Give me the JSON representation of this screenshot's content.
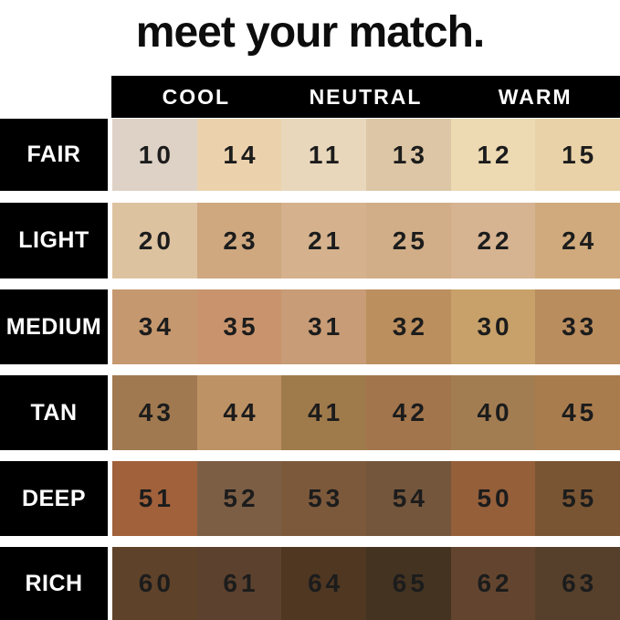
{
  "title": "meet your match.",
  "colors": {
    "background": "#ffffff",
    "header_bg": "#000000",
    "header_text": "#ffffff",
    "label_bg": "#000000",
    "label_text": "#ffffff",
    "number_text": "#1c1c1c"
  },
  "chart_data": {
    "type": "table",
    "title": "meet your match.",
    "column_groups": [
      "COOL",
      "NEUTRAL",
      "WARM"
    ],
    "row_labels": [
      "FAIR",
      "LIGHT",
      "MEDIUM",
      "TAN",
      "DEEP",
      "RICH"
    ],
    "rows": [
      {
        "label": "FAIR",
        "shades": [
          {
            "number": "10",
            "hex": "#ded2c6"
          },
          {
            "number": "14",
            "hex": "#ecd2ac"
          },
          {
            "number": "11",
            "hex": "#e8d7bb"
          },
          {
            "number": "13",
            "hex": "#ddc6a5"
          },
          {
            "number": "12",
            "hex": "#edd9b2"
          },
          {
            "number": "15",
            "hex": "#e9d2a7"
          }
        ]
      },
      {
        "label": "LIGHT",
        "shades": [
          {
            "number": "20",
            "hex": "#ddc2a0"
          },
          {
            "number": "23",
            "hex": "#cfa880"
          },
          {
            "number": "21",
            "hex": "#d5b28d"
          },
          {
            "number": "25",
            "hex": "#d1ae88"
          },
          {
            "number": "22",
            "hex": "#d6b391"
          },
          {
            "number": "24",
            "hex": "#d0aa7c"
          }
        ]
      },
      {
        "label": "MEDIUM",
        "shades": [
          {
            "number": "34",
            "hex": "#c6986f"
          },
          {
            "number": "35",
            "hex": "#c9946d"
          },
          {
            "number": "31",
            "hex": "#c89c76"
          },
          {
            "number": "32",
            "hex": "#bc8f5e"
          },
          {
            "number": "30",
            "hex": "#c7a169"
          },
          {
            "number": "33",
            "hex": "#ba8d5f"
          }
        ]
      },
      {
        "label": "TAN",
        "shades": [
          {
            "number": "43",
            "hex": "#a17950"
          },
          {
            "number": "44",
            "hex": "#bd9265"
          },
          {
            "number": "41",
            "hex": "#9f7a4b"
          },
          {
            "number": "42",
            "hex": "#a3754c"
          },
          {
            "number": "40",
            "hex": "#a37d52"
          },
          {
            "number": "45",
            "hex": "#a97c4e"
          }
        ]
      },
      {
        "label": "DEEP",
        "shades": [
          {
            "number": "51",
            "hex": "#a0613b"
          },
          {
            "number": "52",
            "hex": "#7c5e45"
          },
          {
            "number": "53",
            "hex": "#7d593b"
          },
          {
            "number": "54",
            "hex": "#74563c"
          },
          {
            "number": "50",
            "hex": "#955f3a"
          },
          {
            "number": "55",
            "hex": "#7a5533"
          }
        ]
      },
      {
        "label": "RICH",
        "shades": [
          {
            "number": "60",
            "hex": "#5e4229"
          },
          {
            "number": "61",
            "hex": "#5c412e"
          },
          {
            "number": "64",
            "hex": "#4f3722"
          },
          {
            "number": "65",
            "hex": "#443321"
          },
          {
            "number": "62",
            "hex": "#63452f"
          },
          {
            "number": "63",
            "hex": "#57402b"
          }
        ]
      }
    ]
  }
}
